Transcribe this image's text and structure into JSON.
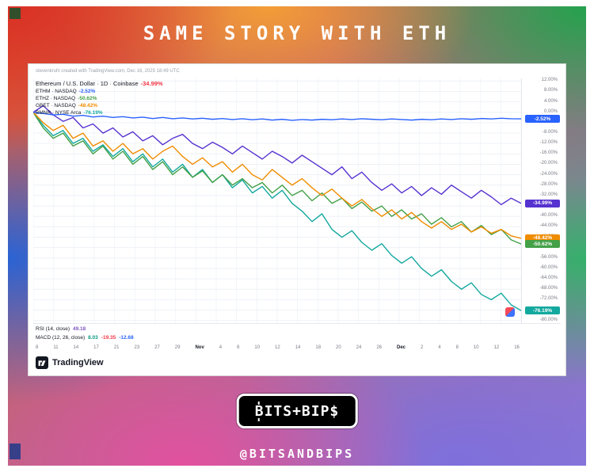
{
  "page": {
    "title": "SAME STORY WITH ETH",
    "handle": "@BITSANDBIPS",
    "logo_b": "B",
    "logo_rest": "ITS+BIP$"
  },
  "chart": {
    "watermark": "stevenkruhl created with TradingView.com, Dec 16, 2025 18:49 UTC",
    "footer_brand": "TradingView"
  },
  "chart_data": {
    "type": "line",
    "title": "Ethereum / U.S. Dollar · 1D · Coinbase",
    "ylabel": "% change",
    "ylim": [
      -81,
      13
    ],
    "grid": true,
    "legend_position": "top-left",
    "legend": [
      {
        "title": "Ethereum / U.S. Dollar · 1D · Coinbase",
        "value": "-34.99%",
        "color": "#f23645"
      },
      {
        "title": "ETHM · NASDAQ",
        "value": "-2.52%",
        "color": "#2962ff"
      },
      {
        "title": "ETHZ · NASDAQ",
        "value": "-50.62%",
        "color": "#43a047"
      },
      {
        "title": "GBET · NASDAQ",
        "value": "-48.42%",
        "color": "#f08c00"
      },
      {
        "title": "BMNR · NYSE Arca",
        "value": "-76.19%",
        "color": "#13a89e"
      }
    ],
    "yticks": [
      {
        "pct": 12,
        "label": "12.00%"
      },
      {
        "pct": 8,
        "label": "8.00%"
      },
      {
        "pct": 4,
        "label": "4.00%"
      },
      {
        "pct": 0,
        "label": "0.00%"
      },
      {
        "pct": -4,
        "label": "-4.00%"
      },
      {
        "pct": -8,
        "label": "-8.00%"
      },
      {
        "pct": -12,
        "label": "-12.00%"
      },
      {
        "pct": -16,
        "label": "-16.00%"
      },
      {
        "pct": -20,
        "label": "-20.00%"
      },
      {
        "pct": -24,
        "label": "-24.00%"
      },
      {
        "pct": -28,
        "label": "-28.00%"
      },
      {
        "pct": -32,
        "label": "-32.00%"
      },
      {
        "pct": -36,
        "label": "-36.00%"
      },
      {
        "pct": -40,
        "label": "-40.00%"
      },
      {
        "pct": -44,
        "label": "-44.00%"
      },
      {
        "pct": -48,
        "label": "-48.00%"
      },
      {
        "pct": -52,
        "label": "-52.00%"
      },
      {
        "pct": -56,
        "label": "-56.00%"
      },
      {
        "pct": -60,
        "label": "-60.00%"
      },
      {
        "pct": -64,
        "label": "-64.00%"
      },
      {
        "pct": -68,
        "label": "-68.00%"
      },
      {
        "pct": -72,
        "label": "-72.00%"
      },
      {
        "pct": -76,
        "label": "-76.00%"
      },
      {
        "pct": -80,
        "label": "-80.00%"
      }
    ],
    "last_values": [
      {
        "label": "-2.52%",
        "pct": -2.52,
        "color": "#2962ff"
      },
      {
        "label": "-34.99%",
        "pct": -34.99,
        "color": "#5632d0"
      },
      {
        "label": "-48.42%",
        "pct": -48.42,
        "color": "#f08c00"
      },
      {
        "label": "-50.62%",
        "pct": -50.62,
        "color": "#43a047"
      },
      {
        "label": "-76.19%",
        "pct": -76.19,
        "color": "#13a89e"
      }
    ],
    "xticks": [
      "8",
      "11",
      "14",
      "17",
      "21",
      "23",
      "27",
      "29",
      "Nov",
      "4",
      "6",
      "10",
      "12",
      "14",
      "18",
      "20",
      "24",
      "26",
      "Dec",
      "2",
      "4",
      "8",
      "10",
      "12",
      "16"
    ],
    "indicators": [
      {
        "name": "RSI",
        "params": "(14, close)",
        "values": [
          {
            "text": "49.18",
            "color": "#7e57c2"
          }
        ]
      },
      {
        "name": "MACD",
        "params": "(12, 26, close)",
        "values": [
          {
            "text": "8.03",
            "color": "#089981"
          },
          {
            "text": "-19.35",
            "color": "#f23645"
          },
          {
            "text": "-12.68",
            "color": "#2962ff"
          }
        ]
      }
    ],
    "series": [
      {
        "name": "BMNR",
        "color": "#13a89e",
        "values": [
          0,
          -5,
          -9,
          -7,
          -12,
          -10,
          -15,
          -12.5,
          -17,
          -14,
          -19,
          -16,
          -21,
          -18,
          -23,
          -20,
          -25,
          -22,
          -27,
          -24,
          -29,
          -26,
          -31,
          -28.5,
          -33,
          -30,
          -35,
          -38,
          -42,
          -39,
          -45,
          -48,
          -45.5,
          -50,
          -53,
          -50.5,
          -55,
          -58,
          -55.5,
          -60,
          -63,
          -60.5,
          -65,
          -68,
          -65.5,
          -70,
          -72,
          -69.5,
          -74,
          -76.19
        ]
      },
      {
        "name": "ETHZ",
        "color": "#43a047",
        "values": [
          0,
          -6,
          -10,
          -8,
          -13,
          -11,
          -16,
          -13,
          -18,
          -15,
          -20,
          -17,
          -22,
          -19,
          -24,
          -21,
          -25,
          -22.5,
          -27,
          -24,
          -28,
          -25.5,
          -29,
          -27,
          -31,
          -28,
          -32,
          -30,
          -34,
          -31,
          -35,
          -33,
          -37,
          -34.5,
          -38,
          -36,
          -40,
          -37.5,
          -41,
          -39,
          -43,
          -40.5,
          -44,
          -42,
          -46,
          -43.5,
          -47,
          -45,
          -49,
          -50.62
        ]
      },
      {
        "name": "GBET",
        "color": "#f08c00",
        "values": [
          0,
          -4,
          -7,
          -5,
          -10,
          -8,
          -13,
          -11,
          -15,
          -12,
          -16,
          -14,
          -18,
          -15,
          -13,
          -17,
          -20,
          -17.5,
          -21,
          -19,
          -23,
          -20,
          -24,
          -26,
          -22,
          -25,
          -28,
          -25.5,
          -29,
          -32,
          -29.5,
          -33,
          -36,
          -33.5,
          -37,
          -40,
          -37.5,
          -41,
          -38.5,
          -42,
          -44.5,
          -42,
          -45,
          -43,
          -46,
          -44,
          -46.5,
          -45,
          -47.5,
          -48.42
        ]
      },
      {
        "name": "ETHUSD",
        "color": "#5632d0",
        "values": [
          0,
          2.5,
          -1,
          -3.5,
          -2,
          -6,
          -4.5,
          -8,
          -6,
          -9.5,
          -7.5,
          -11,
          -9,
          -12.5,
          -10,
          -8.5,
          -12,
          -14,
          -11.5,
          -13.5,
          -16,
          -13,
          -15.5,
          -18,
          -15,
          -17,
          -19.5,
          -16.5,
          -19,
          -21.5,
          -24,
          -21,
          -25.5,
          -23,
          -27,
          -30,
          -27.5,
          -31,
          -28.5,
          -32,
          -29,
          -31.5,
          -28,
          -30.5,
          -33,
          -30,
          -32.5,
          -35.5,
          -33,
          -34.99
        ]
      },
      {
        "name": "ETHM",
        "color": "#2962ff",
        "values": [
          0,
          -0.5,
          -1,
          -0.8,
          -1.5,
          -1.2,
          -1.8,
          -1.5,
          -2,
          -1.7,
          -2.2,
          -1.9,
          -2.4,
          -2,
          -2.5,
          -2.2,
          -2.6,
          -2.3,
          -2.7,
          -2.4,
          -2.8,
          -2.5,
          -2.9,
          -2.6,
          -3,
          -2.7,
          -3.1,
          -2.8,
          -3,
          -2.7,
          -2.9,
          -2.6,
          -2.8,
          -2.5,
          -2.7,
          -2.9,
          -2.6,
          -2.8,
          -3,
          -2.7,
          -2.9,
          -2.6,
          -2.8,
          -2.5,
          -2.7,
          -2.4,
          -2.6,
          -2.3,
          -2.5,
          -2.52
        ]
      }
    ]
  }
}
